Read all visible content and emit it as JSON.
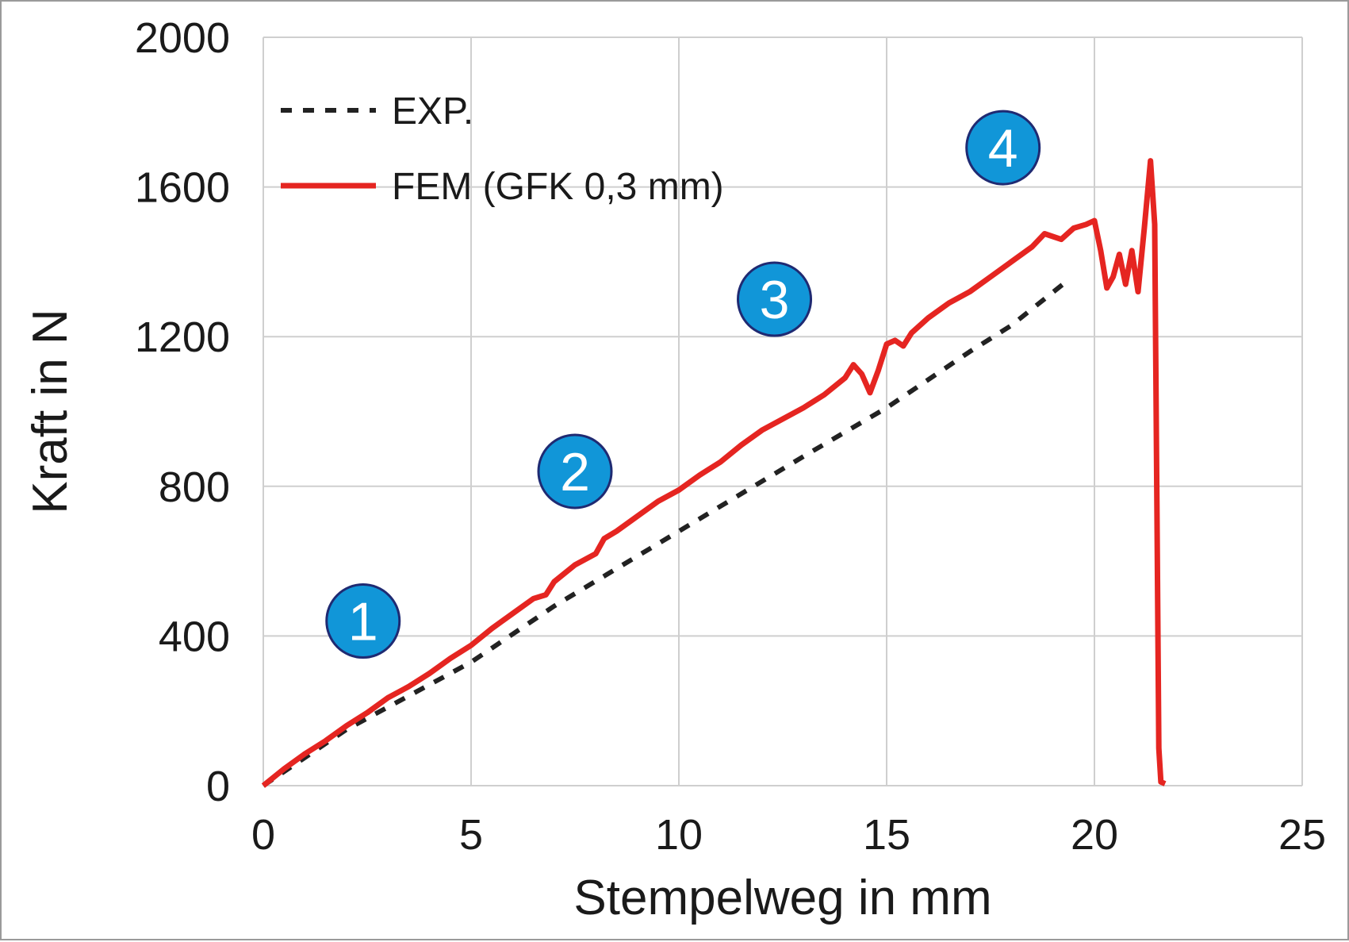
{
  "chart_data": {
    "type": "line",
    "xlabel": "Stempelweg in mm",
    "ylabel": "Kraft in N",
    "xlim": [
      0,
      25
    ],
    "ylim": [
      0,
      2000
    ],
    "x_ticks": [
      0,
      5,
      10,
      15,
      20,
      25
    ],
    "y_ticks": [
      0,
      400,
      800,
      1200,
      1600,
      2000
    ],
    "x_tick_labels": [
      "0",
      "5",
      "10",
      "15",
      "20",
      "25"
    ],
    "y_tick_labels": [
      "0",
      "400",
      "800",
      "1200",
      "1600",
      "2000"
    ],
    "grid": true,
    "legend_position": "top-left",
    "series": [
      {
        "name": "EXP.",
        "style": "dashed",
        "color": "#222222",
        "points": [
          [
            0,
            0
          ],
          [
            2,
            150
          ],
          [
            5,
            330
          ],
          [
            7,
            480
          ],
          [
            10,
            680
          ],
          [
            13,
            880
          ],
          [
            15,
            1010
          ],
          [
            17,
            1160
          ],
          [
            18,
            1230
          ],
          [
            19.3,
            1345
          ]
        ]
      },
      {
        "name": "FEM (GFK 0,3 mm)",
        "style": "solid",
        "color": "#e52521",
        "points": [
          [
            0,
            0
          ],
          [
            0.5,
            45
          ],
          [
            1,
            85
          ],
          [
            1.5,
            120
          ],
          [
            2,
            160
          ],
          [
            2.5,
            195
          ],
          [
            3,
            235
          ],
          [
            3.5,
            265
          ],
          [
            4,
            300
          ],
          [
            4.5,
            340
          ],
          [
            5,
            375
          ],
          [
            5.5,
            420
          ],
          [
            6,
            460
          ],
          [
            6.5,
            500
          ],
          [
            6.8,
            510
          ],
          [
            7.0,
            545
          ],
          [
            7.5,
            590
          ],
          [
            8,
            620
          ],
          [
            8.2,
            660
          ],
          [
            8.5,
            680
          ],
          [
            9,
            720
          ],
          [
            9.5,
            760
          ],
          [
            10,
            790
          ],
          [
            10.5,
            830
          ],
          [
            11,
            865
          ],
          [
            11.5,
            910
          ],
          [
            12,
            950
          ],
          [
            12.5,
            980
          ],
          [
            13,
            1010
          ],
          [
            13.5,
            1045
          ],
          [
            14,
            1090
          ],
          [
            14.2,
            1125
          ],
          [
            14.4,
            1100
          ],
          [
            14.6,
            1050
          ],
          [
            14.8,
            1110
          ],
          [
            15.0,
            1180
          ],
          [
            15.2,
            1190
          ],
          [
            15.4,
            1175
          ],
          [
            15.6,
            1210
          ],
          [
            16,
            1250
          ],
          [
            16.5,
            1290
          ],
          [
            17,
            1320
          ],
          [
            17.5,
            1360
          ],
          [
            18,
            1400
          ],
          [
            18.5,
            1440
          ],
          [
            18.8,
            1475
          ],
          [
            19.2,
            1460
          ],
          [
            19.5,
            1490
          ],
          [
            19.8,
            1500
          ],
          [
            20.0,
            1510
          ],
          [
            20.15,
            1430
          ],
          [
            20.3,
            1330
          ],
          [
            20.45,
            1360
          ],
          [
            20.6,
            1420
          ],
          [
            20.75,
            1340
          ],
          [
            20.9,
            1430
          ],
          [
            21.05,
            1320
          ],
          [
            21.2,
            1490
          ],
          [
            21.35,
            1670
          ],
          [
            21.45,
            1500
          ],
          [
            21.5,
            800
          ],
          [
            21.55,
            100
          ],
          [
            21.6,
            10
          ],
          [
            21.7,
            5
          ]
        ]
      }
    ],
    "annotations": [
      {
        "label": "1",
        "x": 2.4,
        "y": 440
      },
      {
        "label": "2",
        "x": 7.5,
        "y": 840
      },
      {
        "label": "3",
        "x": 12.3,
        "y": 1300
      },
      {
        "label": "4",
        "x": 17.8,
        "y": 1705
      }
    ],
    "marker_colors": {
      "fill": "#1196d8",
      "stroke": "#1f2a72"
    }
  }
}
